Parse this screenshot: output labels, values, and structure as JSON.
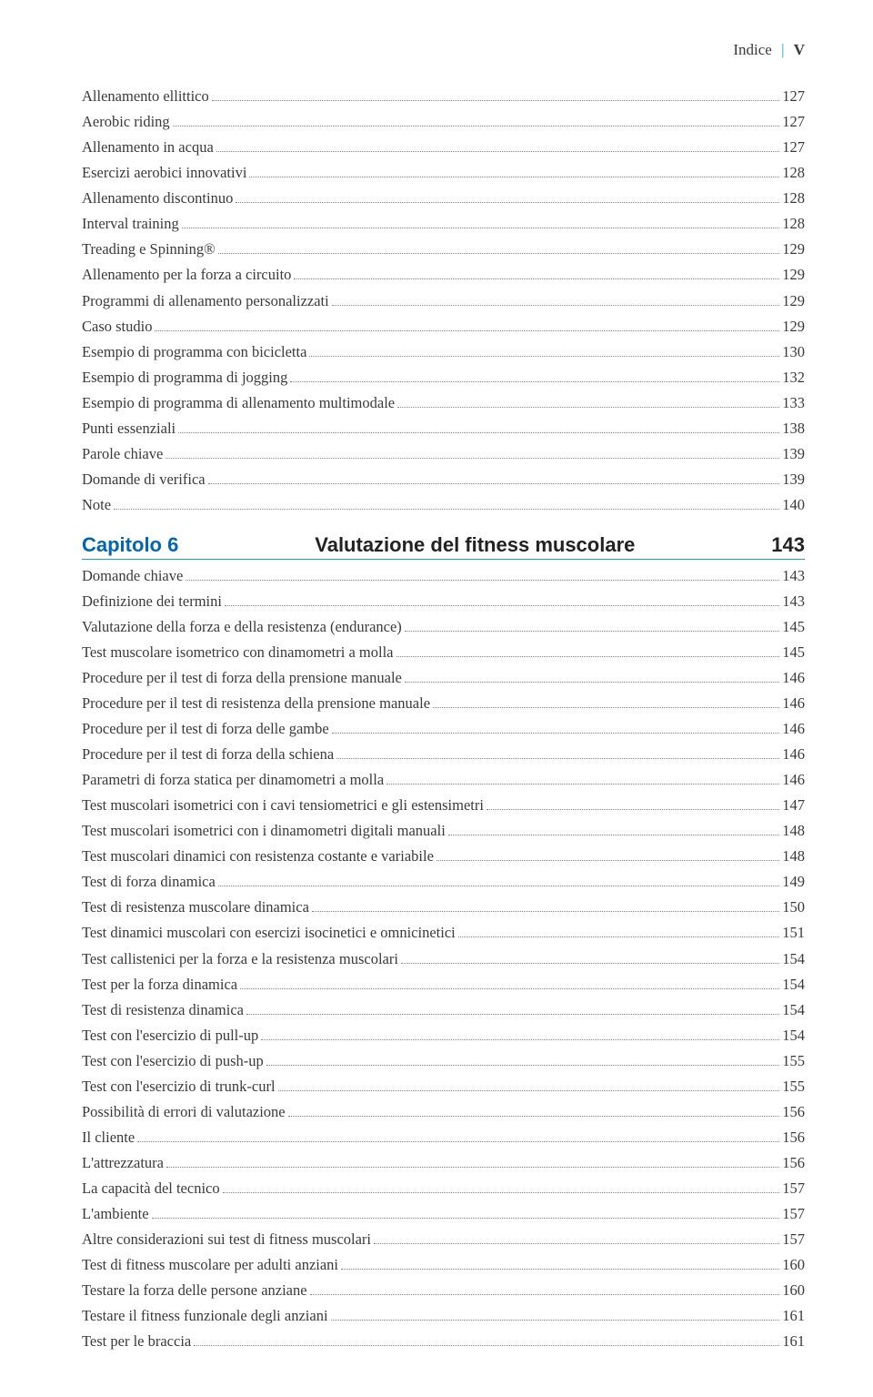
{
  "header": {
    "label": "Indice",
    "roman": "V"
  },
  "toc_pre": [
    {
      "label": "Allenamento ellittico",
      "page": "127"
    },
    {
      "label": "Aerobic riding",
      "page": "127"
    },
    {
      "label": "Allenamento in acqua",
      "page": "127"
    },
    {
      "label": "Esercizi aerobici innovativi",
      "page": "128"
    },
    {
      "label": "Allenamento discontinuo",
      "page": "128"
    },
    {
      "label": "Interval training",
      "page": "128"
    },
    {
      "label": "Treading e Spinning®",
      "page": "129"
    },
    {
      "label": "Allenamento per la forza a circuito",
      "page": "129"
    },
    {
      "label": "Programmi di allenamento personalizzati",
      "page": "129"
    },
    {
      "label": "Caso studio",
      "page": "129"
    },
    {
      "label": "Esempio di programma con bicicletta",
      "page": "130"
    },
    {
      "label": "Esempio di programma di jogging",
      "page": "132"
    },
    {
      "label": "Esempio di programma di allenamento multimodale",
      "page": "133"
    },
    {
      "label": "Punti essenziali",
      "page": "138"
    },
    {
      "label": "Parole chiave",
      "page": "139"
    },
    {
      "label": "Domande di verifica",
      "page": "139"
    },
    {
      "label": "Note",
      "page": "140"
    }
  ],
  "chapter": {
    "left": "Capitolo 6",
    "title": "Valutazione del fitness muscolare",
    "page": "143"
  },
  "toc_post": [
    {
      "label": "Domande chiave",
      "page": "143"
    },
    {
      "label": "Definizione dei termini",
      "page": "143"
    },
    {
      "label": "Valutazione della forza e della resistenza (endurance)",
      "page": "145"
    },
    {
      "label": "Test muscolare isometrico con dinamometri a molla",
      "page": "145"
    },
    {
      "label": "Procedure per il test di forza della prensione manuale",
      "page": "146"
    },
    {
      "label": "Procedure per il test di resistenza della prensione manuale",
      "page": "146"
    },
    {
      "label": "Procedure per il test di forza delle gambe",
      "page": "146"
    },
    {
      "label": "Procedure per il test di forza della schiena",
      "page": "146"
    },
    {
      "label": "Parametri di forza statica per dinamometri a molla",
      "page": "146"
    },
    {
      "label": "Test muscolari isometrici con i cavi tensiometrici e gli estensimetri",
      "page": "147"
    },
    {
      "label": "Test muscolari isometrici con i dinamometri digitali manuali",
      "page": "148"
    },
    {
      "label": "Test muscolari dinamici con resistenza costante e variabile",
      "page": "148"
    },
    {
      "label": "Test di forza dinamica",
      "page": "149"
    },
    {
      "label": "Test di resistenza muscolare dinamica",
      "page": "150"
    },
    {
      "label": "Test dinamici muscolari con esercizi isocinetici e omnicinetici",
      "page": "151"
    },
    {
      "label": "Test callistenici per la forza e la resistenza muscolari",
      "page": "154"
    },
    {
      "label": "Test per la forza dinamica",
      "page": "154"
    },
    {
      "label": "Test di resistenza dinamica",
      "page": "154"
    },
    {
      "label": "Test con l'esercizio di pull-up",
      "page": "154"
    },
    {
      "label": "Test con l'esercizio di push-up",
      "page": "155"
    },
    {
      "label": "Test con l'esercizio di trunk-curl",
      "page": "155"
    },
    {
      "label": "Possibilità di errori di valutazione",
      "page": "156"
    },
    {
      "label": "Il cliente",
      "page": "156"
    },
    {
      "label": "L'attrezzatura",
      "page": "156"
    },
    {
      "label": "La capacità del tecnico",
      "page": "157"
    },
    {
      "label": "L'ambiente",
      "page": "157"
    },
    {
      "label": "Altre considerazioni sui test di fitness muscolari",
      "page": "157"
    },
    {
      "label": "Test di fitness muscolare per adulti anziani",
      "page": "160"
    },
    {
      "label": "Testare la forza delle persone anziane",
      "page": "160"
    },
    {
      "label": "Testare il fitness funzionale degli anziani",
      "page": "161"
    },
    {
      "label": "Test per le braccia",
      "page": "161"
    }
  ]
}
